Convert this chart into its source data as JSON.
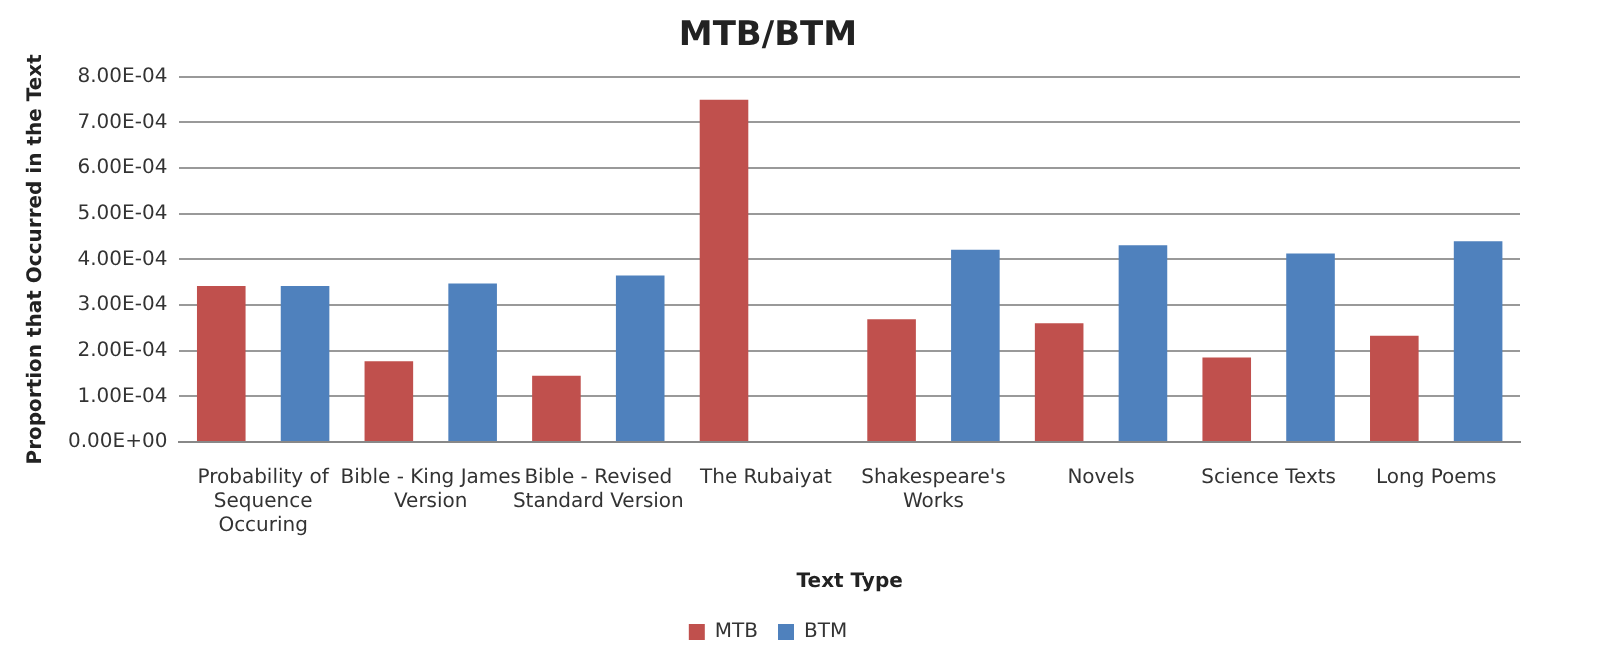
{
  "chart_data": {
    "type": "bar",
    "title": "MTB/BTM",
    "xlabel": "Text Type",
    "ylabel": "Proportion that Occurred in the Text",
    "categories": [
      "Probability of Sequence Occuring",
      "Bible - King James Version",
      "Bible - Revised Standard Version",
      "The Rubaiyat",
      "Shakespeare's Works",
      "Novels",
      "Science Texts",
      "Long Poems"
    ],
    "series": [
      {
        "name": "MTB",
        "color": "#c0504d",
        "values": [
          0.000342,
          0.000177,
          0.000145,
          0.00075,
          0.000269,
          0.00026,
          0.000185,
          0.000233
        ]
      },
      {
        "name": "BTM",
        "color": "#4f81bd",
        "values": [
          0.000342,
          0.000347,
          0.000365,
          null,
          0.000421,
          0.000431,
          0.000413,
          0.00044
        ]
      }
    ],
    "ylim": [
      0,
      0.0008
    ],
    "yticks": [
      {
        "value": 0,
        "label": "0.00E+00"
      },
      {
        "value": 0.0001,
        "label": "1.00E-04"
      },
      {
        "value": 0.0002,
        "label": "2.00E-04"
      },
      {
        "value": 0.0003,
        "label": "3.00E-04"
      },
      {
        "value": 0.0004,
        "label": "4.00E-04"
      },
      {
        "value": 0.0005,
        "label": "5.00E-04"
      },
      {
        "value": 0.0006,
        "label": "6.00E-04"
      },
      {
        "value": 0.0007,
        "label": "7.00E-04"
      },
      {
        "value": 0.0008,
        "label": "8.00E-04"
      }
    ],
    "grid": "y",
    "legend": "bottom"
  }
}
